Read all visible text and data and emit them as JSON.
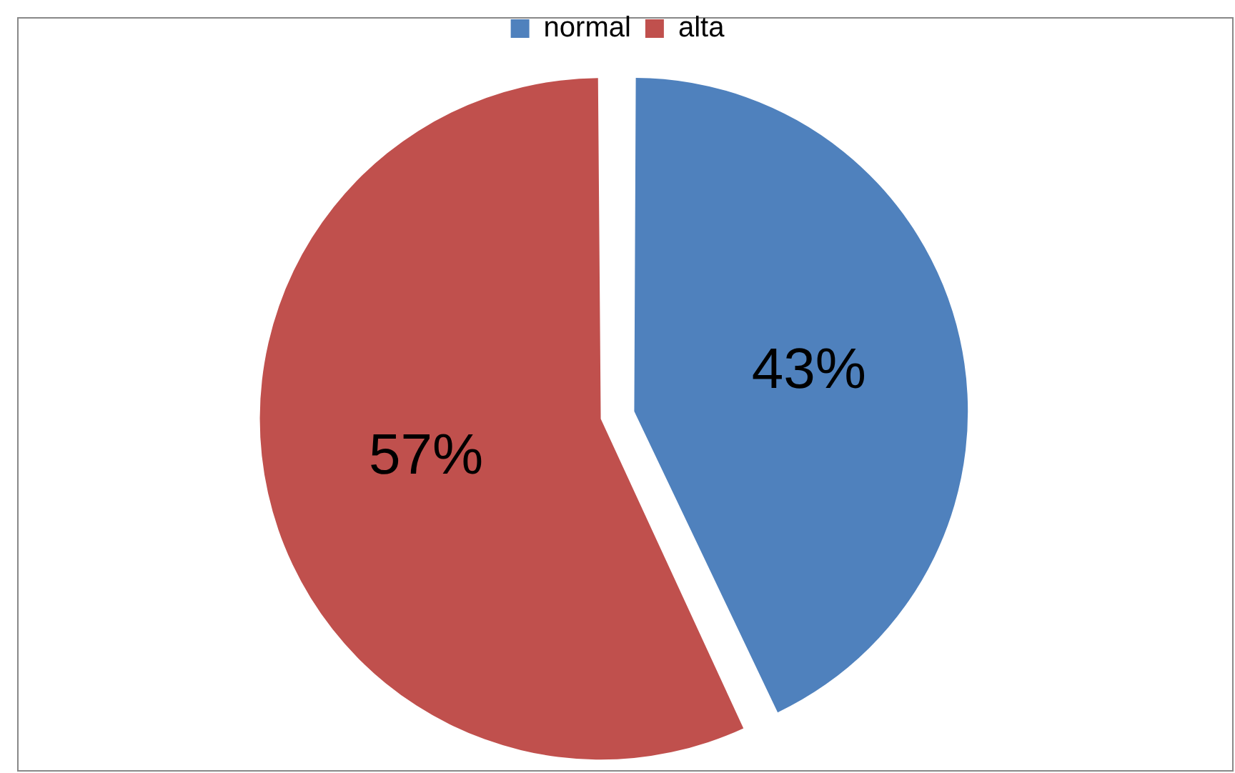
{
  "chart_data": {
    "type": "pie",
    "categories": [
      "normal",
      "alta"
    ],
    "values": [
      43,
      57
    ],
    "colors": [
      "#4f81bd",
      "#c0504d"
    ],
    "legend": "top",
    "data_labels": true,
    "value_labels": [
      "43%",
      "57%"
    ]
  }
}
